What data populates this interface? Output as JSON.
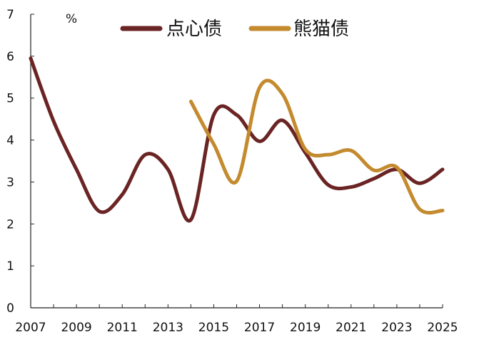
{
  "chart_data": {
    "type": "line",
    "unit_label": "%",
    "x_ticks": [
      "2007",
      "2009",
      "2011",
      "2013",
      "2015",
      "2017",
      "2019",
      "2021",
      "2023",
      "2025"
    ],
    "y_ticks": [
      "0",
      "1",
      "2",
      "3",
      "4",
      "5",
      "6",
      "7"
    ],
    "xlim": [
      2007,
      2025
    ],
    "ylim": [
      0,
      7
    ],
    "grid": false,
    "legend_position": "top",
    "series": [
      {
        "name": "点心债",
        "color": "#6b2424",
        "x": [
          2007,
          2008,
          2009,
          2010,
          2011,
          2012,
          2013,
          2014,
          2015,
          2016,
          2017,
          2018,
          2019,
          2020,
          2021,
          2022,
          2023,
          2024,
          2025
        ],
        "y": [
          5.95,
          4.45,
          3.3,
          2.3,
          2.7,
          3.65,
          3.3,
          2.1,
          4.6,
          4.6,
          3.97,
          4.47,
          3.7,
          2.93,
          2.88,
          3.08,
          3.3,
          2.97,
          3.3
        ]
      },
      {
        "name": "熊猫债",
        "color": "#c48a2e",
        "x": [
          2014,
          2015,
          2016,
          2017,
          2018,
          2019,
          2020,
          2021,
          2022,
          2023,
          2024,
          2025
        ],
        "y": [
          4.92,
          3.9,
          3.02,
          5.25,
          5.1,
          3.78,
          3.65,
          3.75,
          3.28,
          3.35,
          2.35,
          2.32
        ]
      }
    ]
  }
}
